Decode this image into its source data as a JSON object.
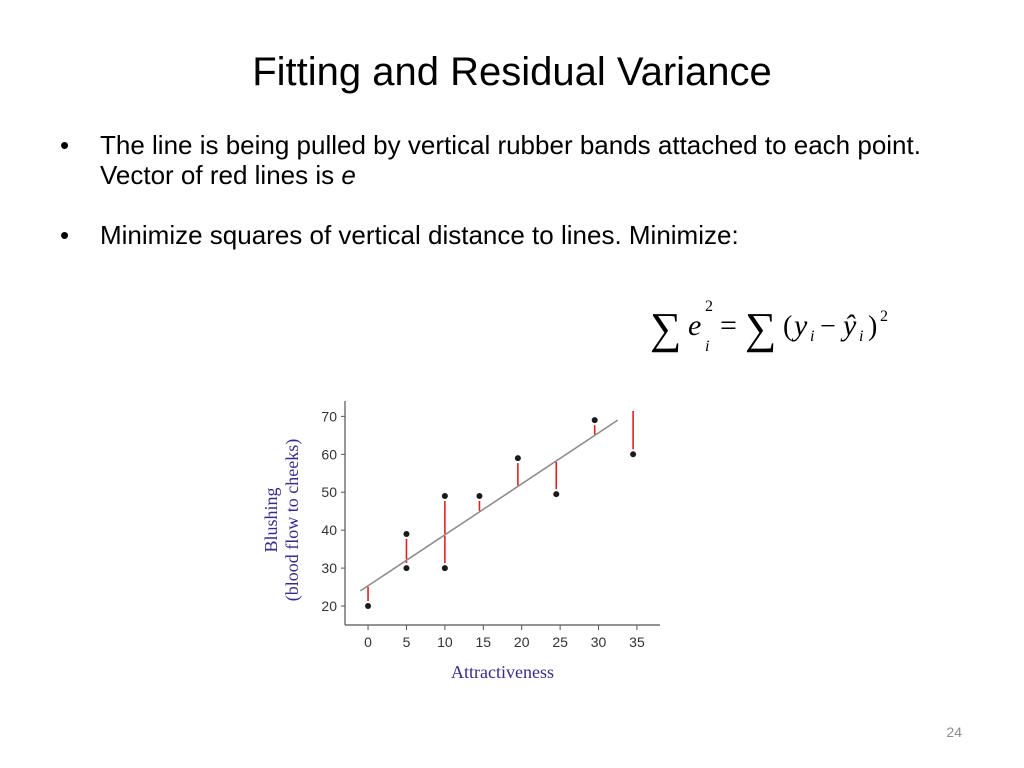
{
  "title": "Fitting and Residual Variance",
  "bullets": [
    {
      "symbol": "•",
      "text": "The line is being pulled by vertical rubber bands attached to each point.  Vector of red lines is ",
      "emphasis": "e"
    },
    {
      "symbol": "•",
      "text": "Minimize squares of vertical distance to lines. Minimize:"
    }
  ],
  "formula": {
    "sum_symbol": "∑",
    "lhs_var": "e",
    "lhs_subscript": "i",
    "lhs_superscript": "2",
    "equals": "=",
    "rhs": "(",
    "y": "y",
    "y_subscript": "i",
    "minus": "−",
    "yhat": "ŷ",
    "yhat_subscript": "i",
    "close": ")",
    "rhs_superscript": "2"
  },
  "page_number": "24",
  "chart_data": {
    "type": "scatter",
    "xlabel": "Attractiveness",
    "ylabel_line1": "Blushing",
    "ylabel_line2": "(blood flow to cheeks)",
    "xlim": [
      -3,
      38
    ],
    "ylim": [
      15,
      73
    ],
    "x_ticks": [
      0,
      5,
      10,
      15,
      20,
      25,
      30,
      35
    ],
    "y_ticks": [
      20,
      30,
      40,
      50,
      60,
      70
    ],
    "x_tick_labels": [
      "0",
      "5",
      "10",
      "15",
      "20",
      "25",
      "30",
      "35"
    ],
    "y_tick_labels": [
      "20",
      "30",
      "40",
      "50",
      "60",
      "70"
    ],
    "points": [
      {
        "x": 0,
        "y": 20
      },
      {
        "x": 5,
        "y": 30
      },
      {
        "x": 5,
        "y": 39
      },
      {
        "x": 10,
        "y": 30
      },
      {
        "x": 10,
        "y": 49
      },
      {
        "x": 14.5,
        "y": 49
      },
      {
        "x": 19.5,
        "y": 59
      },
      {
        "x": 24.5,
        "y": 49.5
      },
      {
        "x": 29.5,
        "y": 69
      },
      {
        "x": 34.5,
        "y": 60
      }
    ],
    "fit_line": {
      "x0": -1,
      "y0": 24,
      "x1": 32.5,
      "y1": 69
    },
    "residual_color": "#e02020",
    "point_color": "#1a1a1a",
    "line_color": "#8a8a8a",
    "axis_color": "#555555",
    "label_color": "#3a2a8c"
  }
}
